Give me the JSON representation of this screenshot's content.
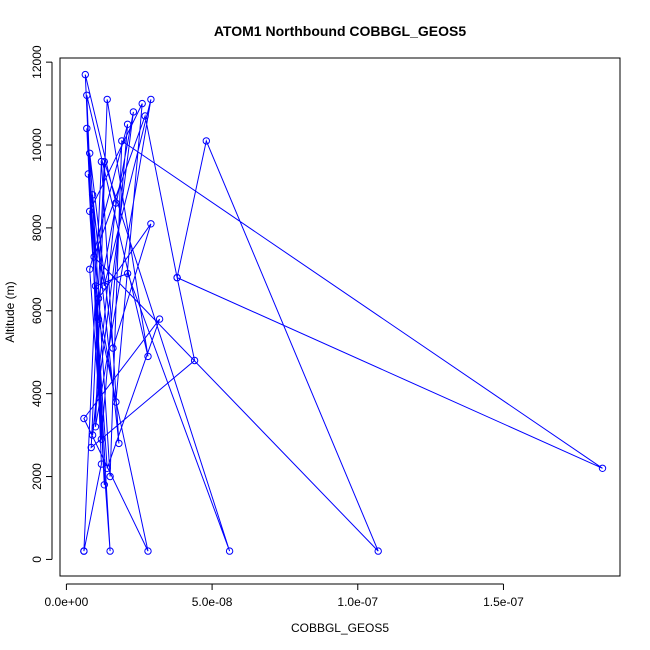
{
  "chart_data": {
    "type": "line",
    "title": "ATOM1 Northbound COBBGL_GEOS5",
    "xlabel": "COBBGL_GEOS5",
    "ylabel": "Altitude (m)",
    "xlim": [
      -2.2e-09,
      1.9e-07
    ],
    "ylim": [
      -400,
      12100
    ],
    "x_ticks": [
      0,
      5e-08,
      1e-07,
      1.5e-07
    ],
    "x_tick_labels": [
      "0.0e+00",
      "5.0e-08",
      "1.0e-07",
      "1.5e-07"
    ],
    "y_ticks": [
      0,
      2000,
      4000,
      6000,
      8000,
      10000,
      12000
    ],
    "y_tick_labels": [
      "0",
      "2000",
      "4000",
      "6000",
      "8000",
      "10000",
      "12000"
    ],
    "grid": false,
    "legend": "none",
    "color": "#0000ff",
    "series": [
      {
        "x": [
          6e-09,
          1.2e-08,
          1.8e-08,
          9e-09,
          1.3e-08,
          7e-09,
          1.1e-08,
          2.8e-08,
          6e-09,
          3.2e-08,
          1.4e-08,
          8e-09,
          2.6e-08,
          1.7e-08,
          1e-08,
          2.1e-08,
          5.6e-08,
          1.3e-08,
          8.5e-09,
          4.4e-08,
          3.8e-08,
          4.8e-08,
          1.07e-07,
          9.5e-09,
          2.7e-08,
          3.8e-08,
          1.84e-07,
          1.9e-08,
          1.5e-08,
          8e-09,
          1.6e-08,
          2.9e-08,
          1.1e-08,
          2.3e-08,
          9e-09,
          1.7e-08,
          6.5e-09,
          1.2e-08,
          2.1e-08,
          8e-09,
          1.5e-08,
          7.5e-09,
          1.3e-08,
          2.9e-08,
          1e-08,
          1.4e-08,
          2.8e-08,
          7e-09,
          1.2e-08,
          6e-09
        ],
        "y": [
          200,
          9600,
          2800,
          8800,
          1800,
          10400,
          5800,
          200,
          3400,
          5800,
          2200,
          8400,
          11000,
          3800,
          6600,
          6900,
          200,
          9600,
          2700,
          4800,
          6800,
          10100,
          200,
          7300,
          10700,
          6800,
          2200,
          10100,
          2000,
          9800,
          5100,
          8100,
          6300,
          10800,
          3000,
          8600,
          11700,
          2900,
          10500,
          7000,
          200,
          9300,
          6600,
          11100,
          3200,
          11100,
          4900,
          11200,
          2300,
          200
        ]
      }
    ]
  }
}
